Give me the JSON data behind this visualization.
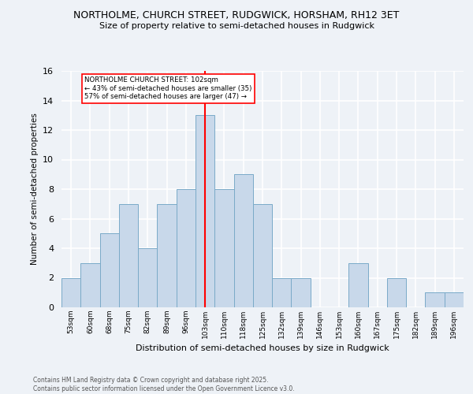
{
  "title_line1": "NORTHOLME, CHURCH STREET, RUDGWICK, HORSHAM, RH12 3ET",
  "title_line2": "Size of property relative to semi-detached houses in Rudgwick",
  "bar_labels": [
    "53sqm",
    "60sqm",
    "68sqm",
    "75sqm",
    "82sqm",
    "89sqm",
    "96sqm",
    "103sqm",
    "110sqm",
    "118sqm",
    "125sqm",
    "132sqm",
    "139sqm",
    "146sqm",
    "153sqm",
    "160sqm",
    "167sqm",
    "175sqm",
    "182sqm",
    "189sqm",
    "196sqm"
  ],
  "bar_values": [
    2,
    3,
    5,
    7,
    4,
    7,
    8,
    13,
    8,
    9,
    7,
    2,
    2,
    0,
    0,
    3,
    0,
    2,
    0,
    1,
    1
  ],
  "bar_color": "#c8d8ea",
  "bar_edge_color": "#7aaac8",
  "ylabel": "Number of semi-detached properties",
  "xlabel": "Distribution of semi-detached houses by size in Rudgwick",
  "annotation_title": "NORTHOLME CHURCH STREET: 102sqm",
  "annotation_line2": "← 43% of semi-detached houses are smaller (35)",
  "annotation_line3": "57% of semi-detached houses are larger (47) →",
  "vline_bar_index": 7,
  "footer_line1": "Contains HM Land Registry data © Crown copyright and database right 2025.",
  "footer_line2": "Contains public sector information licensed under the Open Government Licence v3.0.",
  "ylim": [
    0,
    16
  ],
  "yticks": [
    0,
    2,
    4,
    6,
    8,
    10,
    12,
    14,
    16
  ],
  "background_color": "#eef2f7"
}
